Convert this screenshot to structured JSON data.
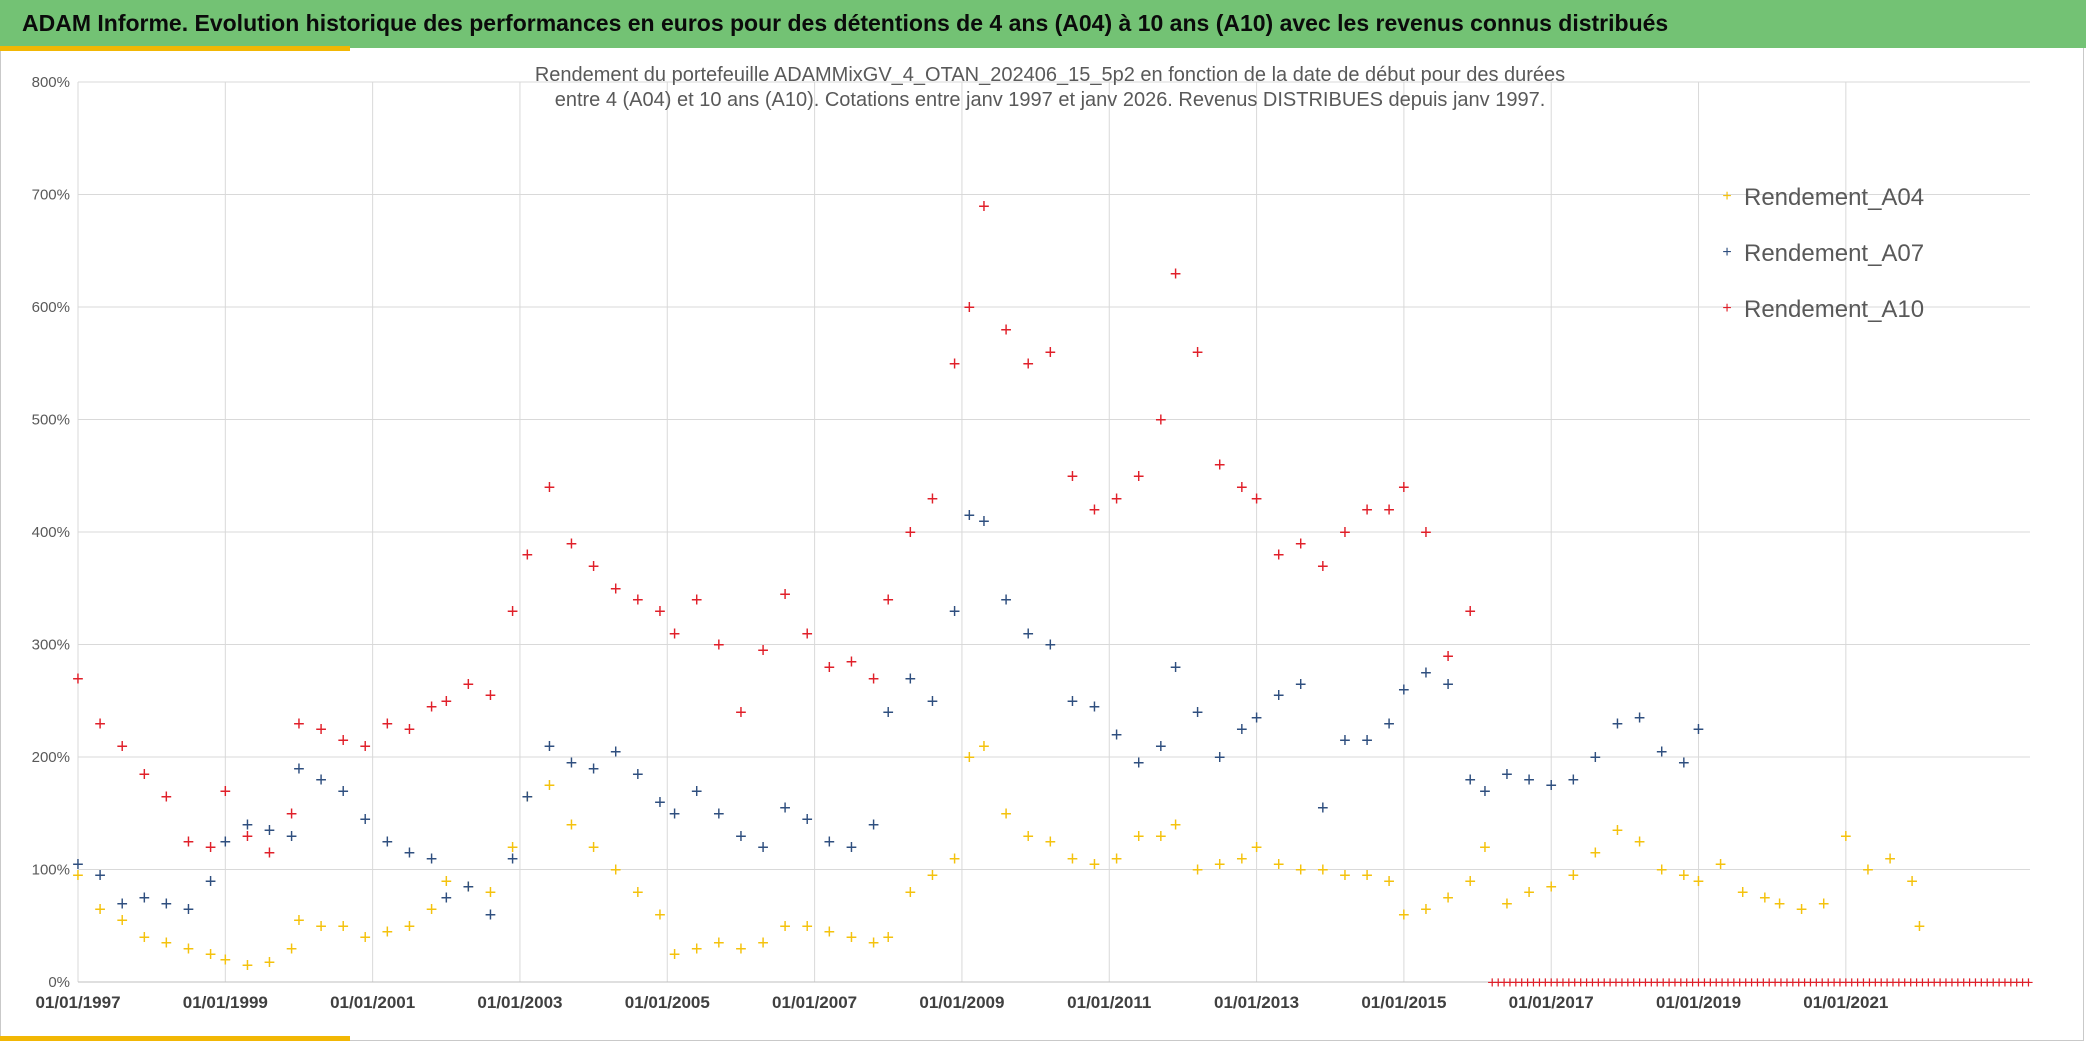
{
  "header": {
    "title": "ADAM Informe. Evolution historique des performances en euros pour des détentions de 4 ans (A04) à 10 ans (A10) avec les revenus connus distribués"
  },
  "colors": {
    "banner": "#73c274",
    "accent": "#f2b705",
    "A04": "#f4c20d",
    "A07": "#2f4f7f",
    "A10": "#e0202a"
  },
  "chart_data": {
    "type": "scatter",
    "title_line1": "Rendement du portefeuille ADAMMixGV_4_OTAN_202406_15_5p2  en fonction de la date de début pour des durées",
    "title_line2": "entre 4 (A04) et 10 ans (A10). Cotations entre janv 1997 et janv 2026. Revenus DISTRIBUES depuis janv 1997.",
    "marker": "+",
    "x_axis": {
      "start_year": 1997,
      "end_year": 2023.5,
      "tick_labels": [
        "01/01/1997",
        "01/01/1999",
        "01/01/2001",
        "01/01/2003",
        "01/01/2005",
        "01/01/2007",
        "01/01/2009",
        "01/01/2011",
        "01/01/2013",
        "01/01/2015",
        "01/01/2017",
        "01/01/2019",
        "01/01/2021"
      ]
    },
    "y_axis": {
      "ylim": [
        0,
        800
      ],
      "tick_labels": [
        "0%",
        "100%",
        "200%",
        "300%",
        "400%",
        "500%",
        "600%",
        "700%",
        "800%"
      ]
    },
    "legend": {
      "position": "top-right",
      "entries": [
        "Rendement_A04",
        "Rendement_A07",
        "Rendement_A10"
      ]
    },
    "series": [
      {
        "name": "Rendement_A04",
        "x": [
          1997.0,
          1997.3,
          1997.6,
          1997.9,
          1998.2,
          1998.5,
          1998.8,
          1999.0,
          1999.3,
          1999.6,
          1999.9,
          2000.0,
          2000.3,
          2000.6,
          2000.9,
          2001.2,
          2001.5,
          2001.8,
          2002.0,
          2002.3,
          2002.6,
          2002.9,
          2003.1,
          2003.4,
          2003.7,
          2004.0,
          2004.3,
          2004.6,
          2004.9,
          2005.1,
          2005.4,
          2005.7,
          2006.0,
          2006.3,
          2006.6,
          2006.9,
          2007.2,
          2007.5,
          2007.8,
          2008.0,
          2008.3,
          2008.6,
          2008.9,
          2009.1,
          2009.3,
          2009.6,
          2009.9,
          2010.2,
          2010.5,
          2010.8,
          2011.1,
          2011.4,
          2011.7,
          2011.9,
          2012.2,
          2012.5,
          2012.8,
          2013.0,
          2013.3,
          2013.6,
          2013.9,
          2014.2,
          2014.5,
          2014.8,
          2015.0,
          2015.3,
          2015.6,
          2015.9,
          2016.1,
          2016.4,
          2016.7,
          2017.0,
          2017.3,
          2017.6,
          2017.9,
          2018.2,
          2018.5,
          2018.8,
          2019.0,
          2019.3,
          2019.6,
          2019.9,
          2020.1,
          2020.4,
          2020.7,
          2021.0,
          2021.3,
          2021.6,
          2021.9,
          2022.0
        ],
        "values": [
          95,
          65,
          55,
          40,
          35,
          30,
          25,
          20,
          15,
          18,
          30,
          55,
          50,
          50,
          40,
          45,
          50,
          65,
          90,
          85,
          80,
          120,
          165,
          175,
          140,
          120,
          100,
          80,
          60,
          25,
          30,
          35,
          30,
          35,
          50,
          50,
          45,
          40,
          35,
          40,
          80,
          95,
          110,
          200,
          210,
          150,
          130,
          125,
          110,
          105,
          110,
          130,
          130,
          140,
          100,
          105,
          110,
          120,
          105,
          100,
          100,
          95,
          95,
          90,
          60,
          65,
          75,
          90,
          120,
          70,
          80,
          85,
          95,
          115,
          135,
          125,
          100,
          95,
          90,
          105,
          80,
          75,
          70,
          65,
          70,
          130,
          100,
          110,
          90,
          50
        ]
      },
      {
        "name": "Rendement_A07",
        "x": [
          1997.0,
          1997.3,
          1997.6,
          1997.9,
          1998.2,
          1998.5,
          1998.8,
          1999.0,
          1999.3,
          1999.6,
          1999.9,
          2000.0,
          2000.3,
          2000.6,
          2000.9,
          2001.2,
          2001.5,
          2001.8,
          2002.0,
          2002.3,
          2002.6,
          2002.9,
          2003.1,
          2003.4,
          2003.7,
          2004.0,
          2004.3,
          2004.6,
          2004.9,
          2005.1,
          2005.4,
          2005.7,
          2006.0,
          2006.3,
          2006.6,
          2006.9,
          2007.2,
          2007.5,
          2007.8,
          2008.0,
          2008.3,
          2008.6,
          2008.9,
          2009.1,
          2009.3,
          2009.6,
          2009.9,
          2010.2,
          2010.5,
          2010.8,
          2011.1,
          2011.4,
          2011.7,
          2011.9,
          2012.2,
          2012.5,
          2012.8,
          2013.0,
          2013.3,
          2013.6,
          2013.9,
          2014.2,
          2014.5,
          2014.8,
          2015.0,
          2015.3,
          2015.6,
          2015.9,
          2016.1,
          2016.4,
          2016.7,
          2017.0,
          2017.3,
          2017.6,
          2017.9,
          2018.2,
          2018.5,
          2018.8,
          2019.0
        ],
        "values": [
          105,
          95,
          70,
          75,
          70,
          65,
          90,
          125,
          140,
          135,
          130,
          190,
          180,
          170,
          145,
          125,
          115,
          110,
          75,
          85,
          60,
          110,
          165,
          210,
          195,
          190,
          205,
          185,
          160,
          150,
          170,
          150,
          130,
          120,
          155,
          145,
          125,
          120,
          140,
          240,
          270,
          250,
          330,
          415,
          410,
          340,
          310,
          300,
          250,
          245,
          220,
          195,
          210,
          280,
          240,
          200,
          225,
          235,
          255,
          265,
          155,
          215,
          215,
          230,
          260,
          275,
          265,
          180,
          170,
          185,
          180,
          175,
          180,
          200,
          230,
          235,
          205,
          195,
          225
        ]
      },
      {
        "name": "Rendement_A10",
        "x": [
          1997.0,
          1997.3,
          1997.6,
          1997.9,
          1998.2,
          1998.5,
          1998.8,
          1999.0,
          1999.3,
          1999.6,
          1999.9,
          2000.0,
          2000.3,
          2000.6,
          2000.9,
          2001.2,
          2001.5,
          2001.8,
          2002.0,
          2002.3,
          2002.6,
          2002.9,
          2003.1,
          2003.4,
          2003.7,
          2004.0,
          2004.3,
          2004.6,
          2004.9,
          2005.1,
          2005.4,
          2005.7,
          2006.0,
          2006.3,
          2006.6,
          2006.9,
          2007.2,
          2007.5,
          2007.8,
          2008.0,
          2008.3,
          2008.6,
          2008.9,
          2009.1,
          2009.3,
          2009.6,
          2009.9,
          2010.2,
          2010.5,
          2010.8,
          2011.1,
          2011.4,
          2011.7,
          2011.9,
          2012.2,
          2012.5,
          2012.8,
          2013.0,
          2013.3,
          2013.6,
          2013.9,
          2014.2,
          2014.5,
          2014.8,
          2015.0,
          2015.3,
          2015.6,
          2015.9
        ],
        "values": [
          270,
          230,
          210,
          185,
          165,
          125,
          120,
          170,
          130,
          115,
          150,
          230,
          225,
          215,
          210,
          230,
          225,
          245,
          250,
          265,
          255,
          330,
          380,
          440,
          390,
          370,
          350,
          340,
          330,
          310,
          340,
          300,
          240,
          295,
          345,
          310,
          280,
          285,
          270,
          340,
          400,
          430,
          550,
          600,
          690,
          580,
          550,
          560,
          450,
          420,
          430,
          450,
          500,
          630,
          560,
          460,
          440,
          430,
          380,
          390,
          370,
          400,
          420,
          420,
          440,
          400,
          290,
          330
        ]
      }
    ],
    "zero_band": {
      "from_year": 2016.2,
      "to_year": 2023.5,
      "value": 0
    }
  }
}
